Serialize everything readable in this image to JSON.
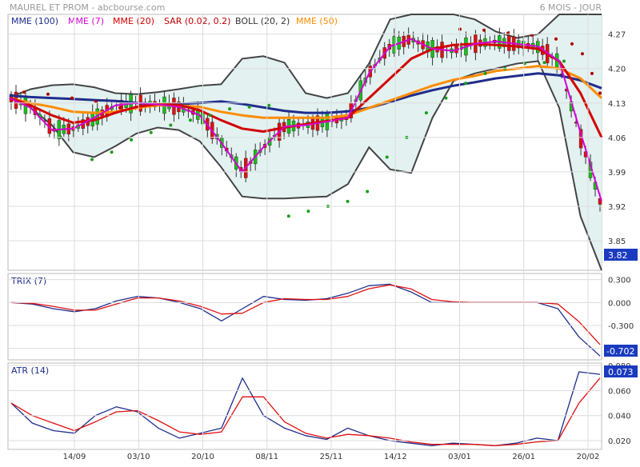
{
  "header": {
    "title": "MAUREL ET PROM - abcbourse.com",
    "period": "6 MOIS - JOUR"
  },
  "legend": [
    {
      "label": "MME (100)",
      "color": "#1f2d8c"
    },
    {
      "label": "MME (7)",
      "color": "#d400d4"
    },
    {
      "label": "MME (20)",
      "color": "#d40000"
    },
    {
      "label": "SAR (0.02, 0.2)",
      "color": "#c00000"
    },
    {
      "label": "BOLL (20, 2)",
      "color": "#333333"
    },
    {
      "label": "MME (50)",
      "color": "#ff8c00"
    }
  ],
  "colors": {
    "up": "#19c019",
    "down": "#e01010",
    "boll_fill": "#e3f1f1",
    "sar_green": "#1a9e1a",
    "sar_red": "#b00000",
    "trix_blue": "#1f2d8c",
    "trix_red": "#e01010",
    "grid": "#dcdcdc",
    "label_bg": "#1a3bbf"
  },
  "chart_data": [
    {
      "type": "candlestick",
      "title": "MAUREL ET PROM",
      "y_ticks": [
        "4.27",
        "4.20",
        "4.13",
        "4.06",
        "3.99",
        "3.92",
        "3.85"
      ],
      "y_range": [
        3.79,
        4.31
      ],
      "last_value": "3.82",
      "x_ticks": [
        "14/09",
        "03/10",
        "20/10",
        "08/11",
        "25/11",
        "14/12",
        "03/01",
        "26/01",
        "20/02"
      ],
      "series": {
        "mme100": [
          4.145,
          4.142,
          4.14,
          4.138,
          4.136,
          4.134,
          4.13,
          4.127,
          4.128,
          4.13,
          4.133,
          4.128,
          4.121,
          4.114,
          4.11,
          4.11,
          4.113,
          4.12,
          4.132,
          4.145,
          4.156,
          4.165,
          4.172,
          4.18,
          4.185,
          4.19,
          4.186,
          4.176,
          4.16
        ],
        "mme50": [
          4.14,
          4.13,
          4.122,
          4.112,
          4.11,
          4.112,
          4.12,
          4.125,
          4.125,
          4.122,
          4.112,
          4.105,
          4.1,
          4.1,
          4.1,
          4.1,
          4.105,
          4.12,
          4.135,
          4.15,
          4.165,
          4.177,
          4.185,
          4.195,
          4.2,
          4.205,
          4.2,
          4.18,
          4.14
        ],
        "mme20": [
          4.14,
          4.125,
          4.105,
          4.09,
          4.095,
          4.11,
          4.122,
          4.128,
          4.126,
          4.115,
          4.095,
          4.078,
          4.072,
          4.08,
          4.087,
          4.093,
          4.1,
          4.14,
          4.18,
          4.22,
          4.24,
          4.248,
          4.25,
          4.248,
          4.245,
          4.24,
          4.215,
          4.15,
          4.06
        ],
        "mme7": [
          4.14,
          4.12,
          4.075,
          4.078,
          4.1,
          4.125,
          4.13,
          4.127,
          4.122,
          4.105,
          4.05,
          3.99,
          4.04,
          4.082,
          4.085,
          4.092,
          4.1,
          4.19,
          4.245,
          4.26,
          4.24,
          4.236,
          4.25,
          4.255,
          4.25,
          4.245,
          4.215,
          4.07,
          3.93
        ],
        "boll_upper": [
          4.142,
          4.158,
          4.166,
          4.168,
          4.162,
          4.15,
          4.148,
          4.152,
          4.158,
          4.165,
          4.168,
          4.22,
          4.225,
          4.212,
          4.15,
          4.14,
          4.15,
          4.21,
          4.3,
          4.318,
          4.32,
          4.322,
          4.3,
          4.275,
          4.262,
          4.27,
          4.365,
          4.5,
          4.7
        ],
        "boll_lower": [
          4.142,
          4.12,
          4.085,
          4.03,
          4.02,
          4.042,
          4.068,
          4.08,
          4.075,
          4.052,
          4.0,
          3.94,
          3.936,
          3.936,
          3.938,
          3.94,
          3.965,
          4.04,
          3.995,
          3.988,
          4.1,
          4.175,
          4.19,
          4.2,
          4.21,
          4.215,
          4.12,
          3.9,
          3.78
        ],
        "sar_green": [
          4.015,
          4.03,
          4.055,
          4.07,
          4.085,
          4.095,
          4.105,
          4.118,
          4.122,
          4.125,
          3.9,
          3.91,
          3.92,
          3.93,
          3.95,
          4.02,
          4.06,
          4.11,
          4.14,
          4.17,
          4.19,
          4.2,
          4.21,
          4.212,
          4.215
        ],
        "sar_red": [
          4.152,
          4.148,
          4.14,
          4.133,
          4.12,
          4.28,
          4.278,
          4.272,
          4.268,
          4.26,
          4.25,
          4.23,
          4.19,
          4.15
        ]
      }
    },
    {
      "type": "line",
      "title": "TRIX (7)",
      "y_ticks": [
        "0.300",
        "0.000",
        "-0.300",
        "-0.600"
      ],
      "y_range": [
        -0.75,
        0.38
      ],
      "last_value": "-0.702",
      "series": [
        {
          "name": "TRIX",
          "values": [
            0.0,
            -0.02,
            -0.08,
            -0.12,
            -0.08,
            0.02,
            0.08,
            0.06,
            0.0,
            -0.08,
            -0.24,
            -0.08,
            0.08,
            0.04,
            0.03,
            0.05,
            0.12,
            0.22,
            0.24,
            0.14,
            0.0,
            0.0,
            0.0,
            0.0,
            0.0,
            0.0,
            -0.08,
            -0.45,
            -0.7
          ]
        },
        {
          "name": "Signal",
          "values": [
            0.0,
            -0.01,
            -0.05,
            -0.1,
            -0.1,
            -0.02,
            0.06,
            0.06,
            0.02,
            -0.05,
            -0.15,
            -0.14,
            0.0,
            0.05,
            0.04,
            0.04,
            0.08,
            0.18,
            0.23,
            0.18,
            0.04,
            0.01,
            0.0,
            0.0,
            0.0,
            0.0,
            -0.02,
            -0.25,
            -0.55
          ]
        }
      ]
    },
    {
      "type": "line",
      "title": "ATR (14)",
      "y_ticks": [
        "0.080",
        "0.060",
        "0.040",
        "0.020"
      ],
      "y_range": [
        0.013,
        0.082
      ],
      "last_value": "0.073",
      "series": [
        {
          "name": "ATR",
          "values": [
            0.05,
            0.034,
            0.028,
            0.026,
            0.04,
            0.047,
            0.043,
            0.03,
            0.022,
            0.026,
            0.03,
            0.07,
            0.04,
            0.03,
            0.024,
            0.021,
            0.03,
            0.024,
            0.02,
            0.018,
            0.016,
            0.018,
            0.017,
            0.016,
            0.018,
            0.022,
            0.02,
            0.075,
            0.073
          ]
        },
        {
          "name": "ATR signal",
          "values": [
            0.05,
            0.04,
            0.034,
            0.028,
            0.035,
            0.043,
            0.044,
            0.036,
            0.027,
            0.025,
            0.027,
            0.055,
            0.055,
            0.035,
            0.026,
            0.022,
            0.025,
            0.024,
            0.022,
            0.019,
            0.017,
            0.017,
            0.017,
            0.016,
            0.017,
            0.019,
            0.02,
            0.05,
            0.07
          ]
        }
      ]
    }
  ]
}
